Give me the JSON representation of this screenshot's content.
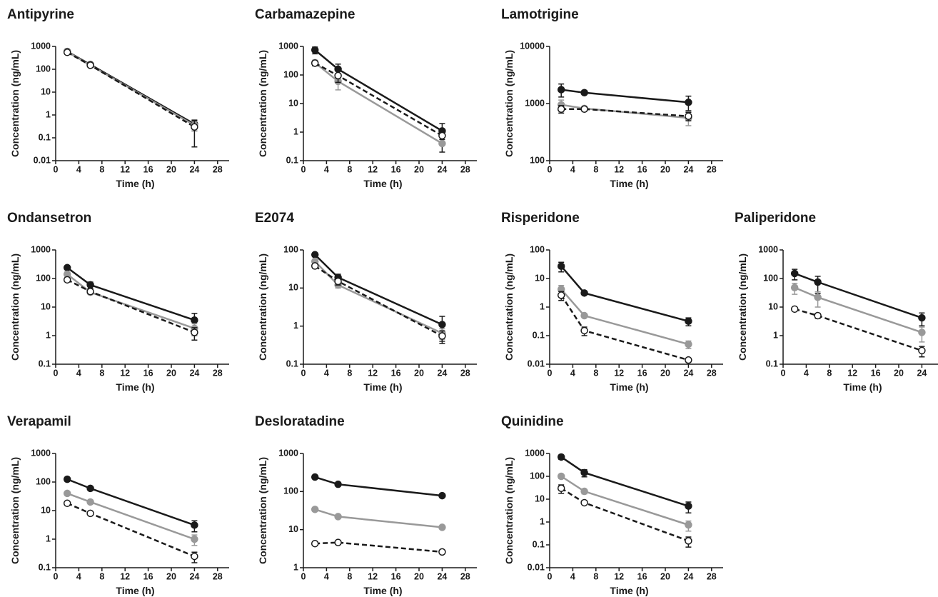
{
  "chart_data": [
    {
      "type": "line",
      "title": "Antipyrine",
      "x_label": "Time (h)",
      "y_label": "Concentration (ng/mL)",
      "log_y": true,
      "x": [
        2,
        6,
        24
      ],
      "xlim": [
        0,
        30
      ],
      "xticks": [
        0,
        4,
        8,
        12,
        16,
        20,
        24,
        28
      ],
      "ylim": [
        0.01,
        1000
      ],
      "yticks": [
        0.01,
        0.1,
        1,
        10,
        100,
        1000
      ],
      "series": [
        {
          "color": "#1a1a1a",
          "marker": "filled",
          "dashed": false,
          "values": [
            600,
            160,
            0.4
          ],
          "errors": [
            60,
            20,
            0.2
          ]
        },
        {
          "color": "#999999",
          "marker": "filled",
          "dashed": false,
          "values": [
            580,
            150,
            0.35
          ],
          "errors": [
            50,
            15,
            0.15
          ]
        },
        {
          "color": "#1a1a1a",
          "marker": "open",
          "dashed": true,
          "values": [
            550,
            150,
            0.3
          ],
          "errors": [
            50,
            15,
            0.26
          ]
        }
      ]
    },
    {
      "type": "line",
      "title": "Carbamazepine",
      "x_label": "Time (h)",
      "y_label": "Concentration (ng/mL)",
      "log_y": true,
      "x": [
        2,
        6,
        24
      ],
      "xlim": [
        0,
        30
      ],
      "xticks": [
        0,
        4,
        8,
        12,
        16,
        20,
        24,
        28
      ],
      "ylim": [
        0.1,
        1000
      ],
      "yticks": [
        0.1,
        1,
        10,
        100,
        1000
      ],
      "series": [
        {
          "color": "#1a1a1a",
          "marker": "filled",
          "dashed": false,
          "values": [
            750,
            160,
            1.1
          ],
          "errors": [
            200,
            80,
            0.9
          ]
        },
        {
          "color": "#999999",
          "marker": "filled",
          "dashed": false,
          "values": [
            270,
            60,
            0.4
          ],
          "errors": [
            60,
            30,
            0.05
          ]
        },
        {
          "color": "#1a1a1a",
          "marker": "open",
          "dashed": true,
          "values": [
            260,
            95,
            0.75
          ],
          "errors": [
            50,
            40,
            0.2
          ]
        }
      ]
    },
    {
      "type": "line",
      "title": "Lamotrigine",
      "x_label": "Time (h)",
      "y_label": "Concentration (ng/mL)",
      "log_y": true,
      "x": [
        2,
        6,
        24
      ],
      "xlim": [
        0,
        30
      ],
      "xticks": [
        0,
        4,
        8,
        12,
        16,
        20,
        24,
        28
      ],
      "ylim": [
        100,
        10000
      ],
      "yticks": [
        100,
        1000,
        10000
      ],
      "series": [
        {
          "color": "#1a1a1a",
          "marker": "filled",
          "dashed": false,
          "values": [
            1750,
            1550,
            1050
          ],
          "errors": [
            450,
            80,
            300
          ]
        },
        {
          "color": "#999999",
          "marker": "filled",
          "dashed": false,
          "values": [
            950,
            820,
            560
          ],
          "errors": [
            200,
            50,
            150
          ]
        },
        {
          "color": "#1a1a1a",
          "marker": "open",
          "dashed": true,
          "values": [
            800,
            800,
            600
          ],
          "errors": [
            120,
            40,
            100
          ]
        }
      ]
    },
    {
      "type": "line",
      "title": "Ondansetron",
      "x_label": "Time (h)",
      "y_label": "Concentration (ng/mL)",
      "log_y": true,
      "x": [
        2,
        6,
        24
      ],
      "xlim": [
        0,
        30
      ],
      "xticks": [
        0,
        4,
        8,
        12,
        16,
        20,
        24,
        28
      ],
      "ylim": [
        0.1,
        1000
      ],
      "yticks": [
        0.1,
        1,
        10,
        100,
        1000
      ],
      "series": [
        {
          "color": "#1a1a1a",
          "marker": "filled",
          "dashed": false,
          "values": [
            240,
            60,
            3.5
          ],
          "errors": [
            30,
            15,
            2.5
          ]
        },
        {
          "color": "#999999",
          "marker": "filled",
          "dashed": false,
          "values": [
            140,
            33,
            1.8
          ],
          "errors": [
            30,
            5,
            0.8
          ]
        },
        {
          "color": "#1a1a1a",
          "marker": "open",
          "dashed": true,
          "values": [
            90,
            35,
            1.3
          ],
          "errors": [
            10,
            5,
            0.6
          ]
        }
      ]
    },
    {
      "type": "line",
      "title": "E2074",
      "x_label": "Time (h)",
      "y_label": "Concentration (ng/mL)",
      "log_y": true,
      "x": [
        2,
        6,
        24
      ],
      "xlim": [
        0,
        30
      ],
      "xticks": [
        0,
        4,
        8,
        12,
        16,
        20,
        24,
        28
      ],
      "ylim": [
        0.1,
        100
      ],
      "yticks": [
        0.1,
        1,
        10,
        100
      ],
      "series": [
        {
          "color": "#1a1a1a",
          "marker": "filled",
          "dashed": false,
          "values": [
            75,
            19,
            1.1
          ],
          "errors": [
            8,
            4,
            0.7
          ]
        },
        {
          "color": "#999999",
          "marker": "filled",
          "dashed": false,
          "values": [
            50,
            12,
            0.65
          ],
          "errors": [
            6,
            2,
            0.2
          ]
        },
        {
          "color": "#1a1a1a",
          "marker": "open",
          "dashed": true,
          "values": [
            38,
            15,
            0.55
          ],
          "errors": [
            5,
            3,
            0.2
          ]
        }
      ]
    },
    {
      "type": "line",
      "title": "Risperidone",
      "x_label": "Time (h)",
      "y_label": "Concentration (ng/mL)",
      "log_y": true,
      "x": [
        2,
        6,
        24
      ],
      "xlim": [
        0,
        30
      ],
      "xticks": [
        0,
        4,
        8,
        12,
        16,
        20,
        24,
        28
      ],
      "ylim": [
        0.01,
        100
      ],
      "yticks": [
        0.01,
        0.1,
        1,
        10,
        100
      ],
      "series": [
        {
          "color": "#1a1a1a",
          "marker": "filled",
          "dashed": false,
          "values": [
            27,
            3.1,
            0.32
          ],
          "errors": [
            10,
            0.3,
            0.1
          ]
        },
        {
          "color": "#999999",
          "marker": "filled",
          "dashed": false,
          "values": [
            4.2,
            0.5,
            0.05
          ],
          "errors": [
            1.5,
            0.05,
            0.015
          ]
        },
        {
          "color": "#1a1a1a",
          "marker": "open",
          "dashed": true,
          "values": [
            2.6,
            0.15,
            0.014
          ],
          "errors": [
            0.9,
            0.05,
            0.002
          ]
        }
      ]
    },
    {
      "type": "line",
      "title": "Paliperidone",
      "x_label": "Time (h)",
      "y_label": "Concentration (ng/mL)",
      "log_y": true,
      "x": [
        2,
        6,
        24
      ],
      "xlim": [
        0,
        30
      ],
      "xticks": [
        0,
        4,
        8,
        12,
        16,
        20,
        24,
        28
      ],
      "ylim": [
        0.1,
        1000
      ],
      "yticks": [
        0.1,
        1,
        10,
        100,
        1000
      ],
      "series": [
        {
          "color": "#1a1a1a",
          "marker": "filled",
          "dashed": false,
          "values": [
            150,
            75,
            4.2
          ],
          "errors": [
            60,
            45,
            2
          ]
        },
        {
          "color": "#999999",
          "marker": "filled",
          "dashed": false,
          "values": [
            48,
            22,
            1.3
          ],
          "errors": [
            20,
            12,
            0.7
          ]
        },
        {
          "color": "#1a1a1a",
          "marker": "open",
          "dashed": true,
          "values": [
            8.5,
            5,
            0.3
          ],
          "errors": [
            1,
            1,
            0.12
          ]
        }
      ]
    },
    {
      "type": "line",
      "title": "Verapamil",
      "x_label": "Time (h)",
      "y_label": "Concentration (ng/mL)",
      "log_y": true,
      "x": [
        2,
        6,
        24
      ],
      "xlim": [
        0,
        30
      ],
      "xticks": [
        0,
        4,
        8,
        12,
        16,
        20,
        24,
        28
      ],
      "ylim": [
        0.1,
        1000
      ],
      "yticks": [
        0.1,
        1,
        10,
        100,
        1000
      ],
      "series": [
        {
          "color": "#1a1a1a",
          "marker": "filled",
          "dashed": false,
          "values": [
            125,
            60,
            3.1
          ],
          "errors": [
            15,
            8,
            1.3
          ]
        },
        {
          "color": "#999999",
          "marker": "filled",
          "dashed": false,
          "values": [
            40,
            20,
            1
          ],
          "errors": [
            5,
            3,
            0.4
          ]
        },
        {
          "color": "#1a1a1a",
          "marker": "open",
          "dashed": true,
          "values": [
            18,
            8,
            0.25
          ],
          "errors": [
            2,
            1,
            0.1
          ]
        }
      ]
    },
    {
      "type": "line",
      "title": "Desloratadine",
      "x_label": "Time (h)",
      "y_label": "Concentration (ng/mL)",
      "log_y": true,
      "x": [
        2,
        6,
        24
      ],
      "xlim": [
        0,
        30
      ],
      "xticks": [
        0,
        4,
        8,
        12,
        16,
        20,
        24,
        28
      ],
      "ylim": [
        1,
        1000
      ],
      "yticks": [
        1,
        10,
        100,
        1000
      ],
      "series": [
        {
          "color": "#1a1a1a",
          "marker": "filled",
          "dashed": false,
          "values": [
            240,
            155,
            78
          ],
          "errors": [
            20,
            10,
            6
          ]
        },
        {
          "color": "#999999",
          "marker": "filled",
          "dashed": false,
          "values": [
            34,
            22,
            11.5
          ],
          "errors": [
            3,
            2,
            1
          ]
        },
        {
          "color": "#1a1a1a",
          "marker": "open",
          "dashed": true,
          "values": [
            4.3,
            4.6,
            2.6
          ],
          "errors": [
            0.3,
            0.3,
            0.2
          ]
        }
      ]
    },
    {
      "type": "line",
      "title": "Quinidine",
      "x_label": "Time (h)",
      "y_label": "Concentration (ng/mL)",
      "log_y": true,
      "x": [
        2,
        6,
        24
      ],
      "xlim": [
        0,
        30
      ],
      "xticks": [
        0,
        4,
        8,
        12,
        16,
        20,
        24,
        28
      ],
      "ylim": [
        0.01,
        1000
      ],
      "yticks": [
        0.01,
        0.1,
        1,
        10,
        100,
        1000
      ],
      "series": [
        {
          "color": "#1a1a1a",
          "marker": "filled",
          "dashed": false,
          "values": [
            700,
            145,
            5
          ],
          "errors": [
            150,
            50,
            2.5
          ]
        },
        {
          "color": "#999999",
          "marker": "filled",
          "dashed": false,
          "values": [
            100,
            22,
            0.75
          ],
          "errors": [
            20,
            5,
            0.35
          ]
        },
        {
          "color": "#1a1a1a",
          "marker": "open",
          "dashed": true,
          "values": [
            30,
            7,
            0.15
          ],
          "errors": [
            12,
            1,
            0.07
          ]
        }
      ]
    }
  ]
}
